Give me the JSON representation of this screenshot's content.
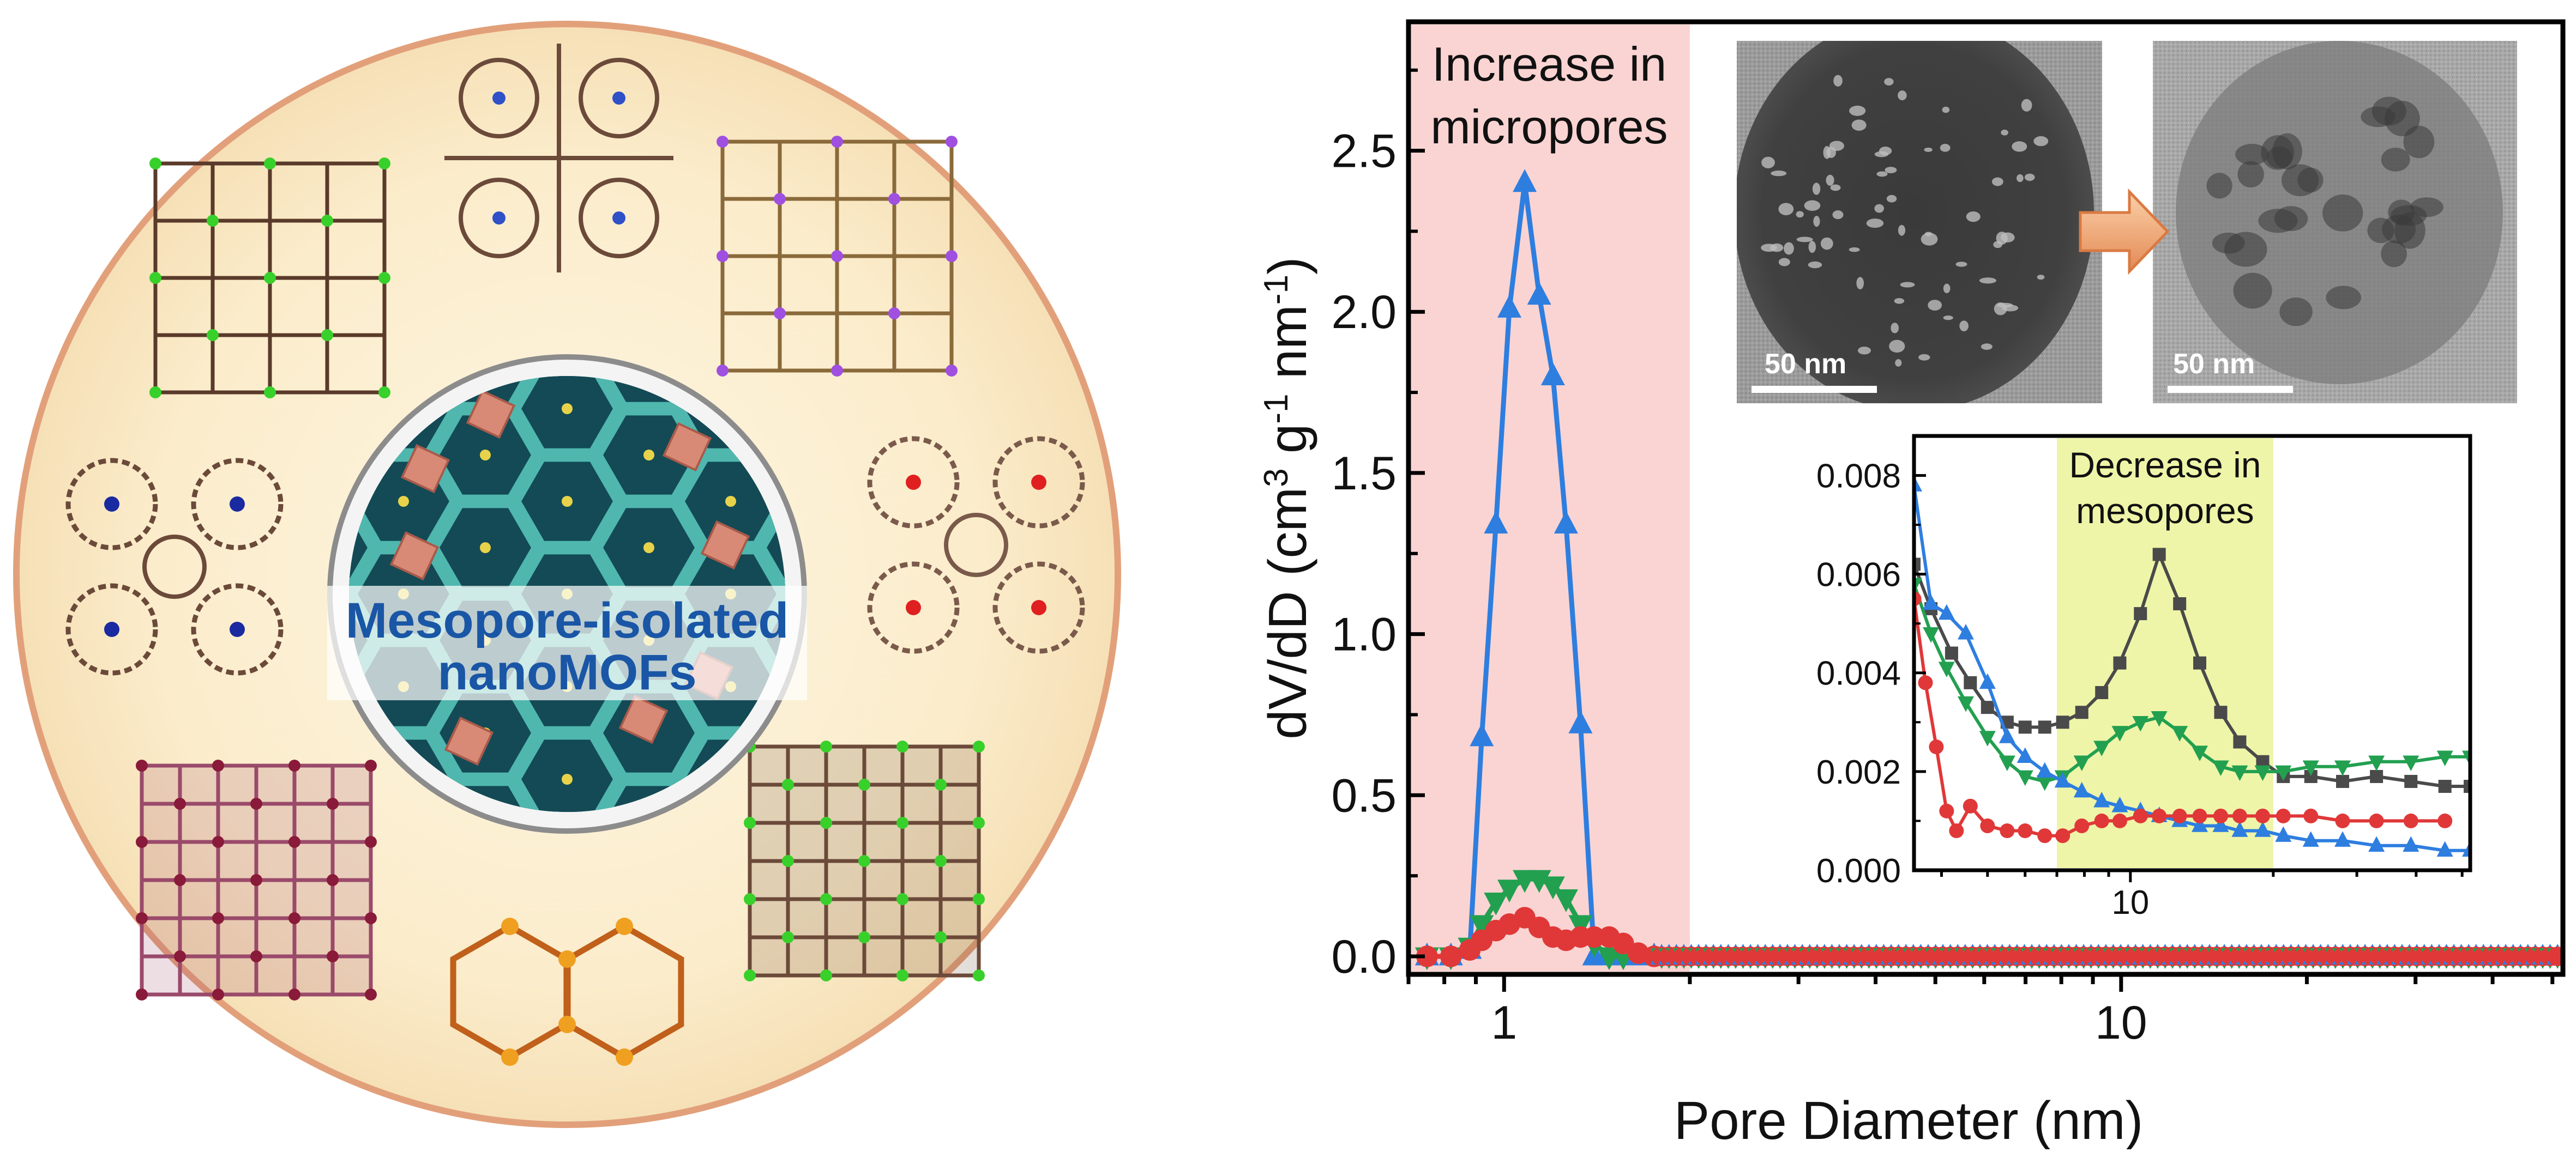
{
  "graphic": {
    "center_label": [
      "Mesopore-isolated",
      "nanoMOFs"
    ],
    "frameworks": [
      {
        "style": "grid",
        "color": "#5a3a2a",
        "node": "#38d02a"
      },
      {
        "style": "cross",
        "color": "#6b4a3a",
        "node": "#3050c8"
      },
      {
        "style": "grid",
        "color": "#8a6a3a",
        "node": "#a050e0"
      },
      {
        "style": "rings",
        "color": "#7a5a4a",
        "node": "#e02020"
      },
      {
        "style": "rings",
        "color": "#6b4a3a",
        "node": "#1a2aa0"
      },
      {
        "style": "dense",
        "color": "#9a4a6a",
        "node": "#8a1a3a"
      },
      {
        "style": "honeycomb",
        "color": "#c0601a",
        "node": "#f0a020"
      },
      {
        "style": "dense",
        "color": "#6b4a3a",
        "node": "#38d02a"
      }
    ]
  },
  "chart_data": [
    {
      "type": "line",
      "title": "",
      "xlabel": "Pore Diameter (nm)",
      "ylabel_parts": [
        "dV/dD (cm",
        "3",
        " g",
        "-1",
        " nm",
        "-1",
        ")"
      ],
      "x_scale": "log",
      "xlim": [
        0.7,
        52
      ],
      "ylim": [
        0,
        2.9
      ],
      "x_ticks": [
        1,
        10
      ],
      "y_ticks": [
        0.0,
        0.5,
        1.0,
        1.5,
        2.0,
        2.5
      ],
      "y_tick_labels": [
        "0.0",
        "0.5",
        "1.0",
        "1.5",
        "2.0",
        "2.5"
      ],
      "highlight": {
        "x": [
          0.7,
          2.0
        ],
        "color": "#fad4d2",
        "label": [
          "Increase in",
          "micropores"
        ]
      },
      "series": [
        {
          "color": "#2e7ee0",
          "marker": "triangle-up",
          "x": [
            0.75,
            0.82,
            0.88,
            0.92,
            0.97,
            1.02,
            1.08,
            1.14,
            1.2,
            1.26,
            1.33,
            1.4,
            1.48,
            1.56,
            1.65,
            1.75
          ],
          "y": [
            0.0,
            0.0,
            0.02,
            0.68,
            1.34,
            2.01,
            2.4,
            2.05,
            1.8,
            1.34,
            0.72,
            0.0,
            0.0,
            0.0,
            0.0,
            0.0
          ]
        },
        {
          "color": "#22a050",
          "marker": "triangle-down",
          "x": [
            0.75,
            0.82,
            0.88,
            0.92,
            0.97,
            1.02,
            1.08,
            1.14,
            1.2,
            1.26,
            1.33,
            1.4,
            1.48,
            1.56
          ],
          "y": [
            0.0,
            0.0,
            0.03,
            0.1,
            0.17,
            0.21,
            0.24,
            0.24,
            0.22,
            0.18,
            0.1,
            0.04,
            0.0,
            0.0
          ]
        },
        {
          "color": "#e03838",
          "marker": "circle",
          "x": [
            0.75,
            0.82,
            0.88,
            0.92,
            0.97,
            1.02,
            1.08,
            1.14,
            1.2,
            1.26,
            1.33,
            1.4,
            1.48,
            1.56,
            1.65,
            1.75
          ],
          "y": [
            0.0,
            0.0,
            0.02,
            0.05,
            0.08,
            0.1,
            0.12,
            0.09,
            0.06,
            0.05,
            0.06,
            0.06,
            0.06,
            0.04,
            0.01,
            0.0
          ]
        }
      ],
      "baseline_marker_colors": [
        "#2e7ee0",
        "#22a050",
        "#e03838"
      ]
    },
    {
      "type": "line",
      "title": "",
      "x_scale": "log",
      "xlim": [
        3.5,
        52
      ],
      "ylim": [
        0,
        0.0088
      ],
      "x_ticks": [
        10
      ],
      "y_ticks": [
        0.0,
        0.002,
        0.004,
        0.006,
        0.008
      ],
      "y_tick_labels": [
        "0.000",
        "0.002",
        "0.004",
        "0.006",
        "0.008"
      ],
      "highlight": {
        "x": [
          7.0,
          20.0
        ],
        "color": "#eef5a8",
        "label": [
          "Decrease in",
          "mesopores"
        ]
      },
      "series": [
        {
          "color": "#4a4a4a",
          "marker": "square",
          "x": [
            3.5,
            3.8,
            4.2,
            4.6,
            5.0,
            5.5,
            6.0,
            6.6,
            7.2,
            7.9,
            8.7,
            9.5,
            10.5,
            11.5,
            12.7,
            14.0,
            15.5,
            17.0,
            19.0,
            21.0,
            24.0,
            28.0,
            33.0,
            39.0,
            46.0,
            52.0
          ],
          "y": [
            0.0062,
            0.0053,
            0.0044,
            0.0038,
            0.0033,
            0.003,
            0.0029,
            0.0029,
            0.003,
            0.0032,
            0.0036,
            0.0042,
            0.0052,
            0.0064,
            0.0054,
            0.0042,
            0.0032,
            0.0026,
            0.0022,
            0.0019,
            0.0019,
            0.0018,
            0.0019,
            0.0018,
            0.0017,
            0.0017
          ]
        },
        {
          "color": "#22a050",
          "marker": "triangle-down",
          "x": [
            3.5,
            3.8,
            4.1,
            4.5,
            5.0,
            5.5,
            6.0,
            6.6,
            7.2,
            7.9,
            8.7,
            9.5,
            10.5,
            11.5,
            12.7,
            14.0,
            15.5,
            17.0,
            19.0,
            21.0,
            24.0,
            28.0,
            33.0,
            39.0,
            46.0,
            52.0
          ],
          "y": [
            0.0058,
            0.0048,
            0.0041,
            0.0034,
            0.0027,
            0.0022,
            0.0019,
            0.0018,
            0.0019,
            0.0022,
            0.0025,
            0.0028,
            0.003,
            0.0031,
            0.0028,
            0.0024,
            0.0021,
            0.002,
            0.002,
            0.002,
            0.0021,
            0.0021,
            0.0022,
            0.0022,
            0.0023,
            0.0023
          ]
        },
        {
          "color": "#2e7ee0",
          "marker": "triangle-up",
          "x": [
            3.5,
            3.8,
            4.1,
            4.5,
            5.0,
            5.5,
            6.0,
            6.6,
            7.2,
            7.9,
            8.7,
            9.5,
            10.5,
            11.5,
            12.7,
            14.0,
            15.5,
            17.0,
            19.0,
            21.0,
            24.0,
            28.0,
            33.0,
            39.0,
            46.0,
            52.0
          ],
          "y": [
            0.0078,
            0.0054,
            0.0052,
            0.0048,
            0.0038,
            0.0027,
            0.0023,
            0.002,
            0.0018,
            0.0016,
            0.0014,
            0.0013,
            0.0012,
            0.0011,
            0.001,
            0.0009,
            0.0009,
            0.0008,
            0.0008,
            0.0007,
            0.0006,
            0.0006,
            0.0005,
            0.0005,
            0.0004,
            0.0004
          ]
        },
        {
          "color": "#e03838",
          "marker": "circle",
          "x": [
            3.5,
            3.7,
            3.9,
            4.1,
            4.3,
            4.6,
            5.0,
            5.5,
            6.0,
            6.6,
            7.2,
            7.9,
            8.7,
            9.5,
            10.5,
            11.5,
            12.7,
            14.0,
            15.5,
            17.0,
            19.0,
            21.0,
            24.0,
            28.0,
            33.0,
            39.0,
            46.0
          ],
          "y": [
            0.0055,
            0.0038,
            0.0025,
            0.0012,
            0.0008,
            0.0013,
            0.0009,
            0.0008,
            0.0008,
            0.0007,
            0.0007,
            0.0009,
            0.001,
            0.001,
            0.0011,
            0.0011,
            0.0011,
            0.0011,
            0.0011,
            0.0011,
            0.0011,
            0.0011,
            0.0011,
            0.001,
            0.001,
            0.001,
            0.001
          ]
        }
      ]
    }
  ],
  "micrographs": [
    {
      "scale_label": "50 nm",
      "tone": "dark",
      "spots": "bright"
    },
    {
      "scale_label": "50 nm",
      "tone": "light",
      "spots": "dark"
    }
  ],
  "arrow": {
    "color": "#f0a070"
  }
}
